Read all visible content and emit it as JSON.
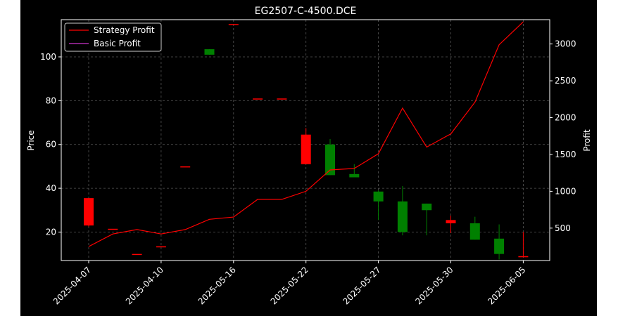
{
  "chart_data": {
    "type": "candlestick+line",
    "title": "EG2507-C-4500.DCE",
    "ylabel_left": "Price",
    "ylabel_right": "Profit",
    "ylim_left": [
      7,
      117
    ],
    "ylim_right": [
      60,
      3330
    ],
    "yticks_left": [
      20,
      40,
      60,
      80,
      100
    ],
    "yticks_right": [
      500,
      1000,
      1500,
      2000,
      2500,
      3000
    ],
    "grid": true,
    "legend": {
      "position": "top-left",
      "entries": [
        {
          "name": "Strategy Profit",
          "color": "#ff0000"
        },
        {
          "name": "Basic Profit",
          "color": "#cc33cc"
        }
      ]
    },
    "xtick_labels": [
      {
        "index": 0,
        "label": "2025-04-07"
      },
      {
        "index": 3,
        "label": "2025-04-10"
      },
      {
        "index": 6,
        "label": "2025-05-16"
      },
      {
        "index": 9,
        "label": "2025-05-22"
      },
      {
        "index": 12,
        "label": "2025-05-27"
      },
      {
        "index": 15,
        "label": "2025-05-30"
      },
      {
        "index": 18,
        "label": "2025-06-05"
      }
    ],
    "candles": [
      {
        "o": 23,
        "h": 35.5,
        "l": 22.5,
        "c": 35.5,
        "color": "#ff0000"
      },
      {
        "o": 21.5,
        "h": 21.5,
        "l": 21.5,
        "c": 21.5,
        "color": "#ff0000"
      },
      {
        "o": 10,
        "h": 10,
        "l": 10,
        "c": 10,
        "color": "#ff0000"
      },
      {
        "o": 13.5,
        "h": 13.5,
        "l": 13.5,
        "c": 13.5,
        "color": "#ff0000"
      },
      {
        "o": 50,
        "h": 50,
        "l": 50,
        "c": 50,
        "color": "#ff0000"
      },
      {
        "o": 103.5,
        "h": 103.5,
        "l": 101,
        "c": 101,
        "color": "#008000"
      },
      {
        "o": 115,
        "h": 115,
        "l": 115,
        "c": 115,
        "color": "#ff0000"
      },
      {
        "o": 81,
        "h": 81,
        "l": 81,
        "c": 81,
        "color": "#ff0000"
      },
      {
        "o": 81,
        "h": 81,
        "l": 81,
        "c": 81,
        "color": "#ff0000"
      },
      {
        "o": 51,
        "h": 67.5,
        "l": 51,
        "c": 64.5,
        "color": "#ff0000"
      },
      {
        "o": 60,
        "h": 62.5,
        "l": 46,
        "c": 46,
        "color": "#008000"
      },
      {
        "o": 46.5,
        "h": 51,
        "l": 45,
        "c": 45,
        "color": "#008000"
      },
      {
        "o": 38.5,
        "h": 39,
        "l": 25.5,
        "c": 34,
        "color": "#008000"
      },
      {
        "o": 34,
        "h": 41,
        "l": 18.5,
        "c": 20,
        "color": "#008000"
      },
      {
        "o": 33,
        "h": 33,
        "l": 18.5,
        "c": 30,
        "color": "#008000"
      },
      {
        "o": 24,
        "h": 27.5,
        "l": 19.5,
        "c": 25.5,
        "color": "#ff0000"
      },
      {
        "o": 24,
        "h": 27,
        "l": 16.5,
        "c": 16.5,
        "color": "#008000"
      },
      {
        "o": 17,
        "h": 23.5,
        "l": 7.5,
        "c": 10,
        "color": "#008000"
      },
      {
        "o": 9,
        "h": 20,
        "l": 8.5,
        "c": 8.5,
        "color": "#ff0000"
      }
    ],
    "strategy_profit": {
      "name": "Strategy Profit",
      "color": "#ff0000",
      "values": [
        250,
        420,
        480,
        420,
        480,
        620,
        650,
        890,
        890,
        1000,
        1290,
        1310,
        1510,
        2130,
        1600,
        1780,
        2210,
        2990,
        3300
      ]
    }
  }
}
